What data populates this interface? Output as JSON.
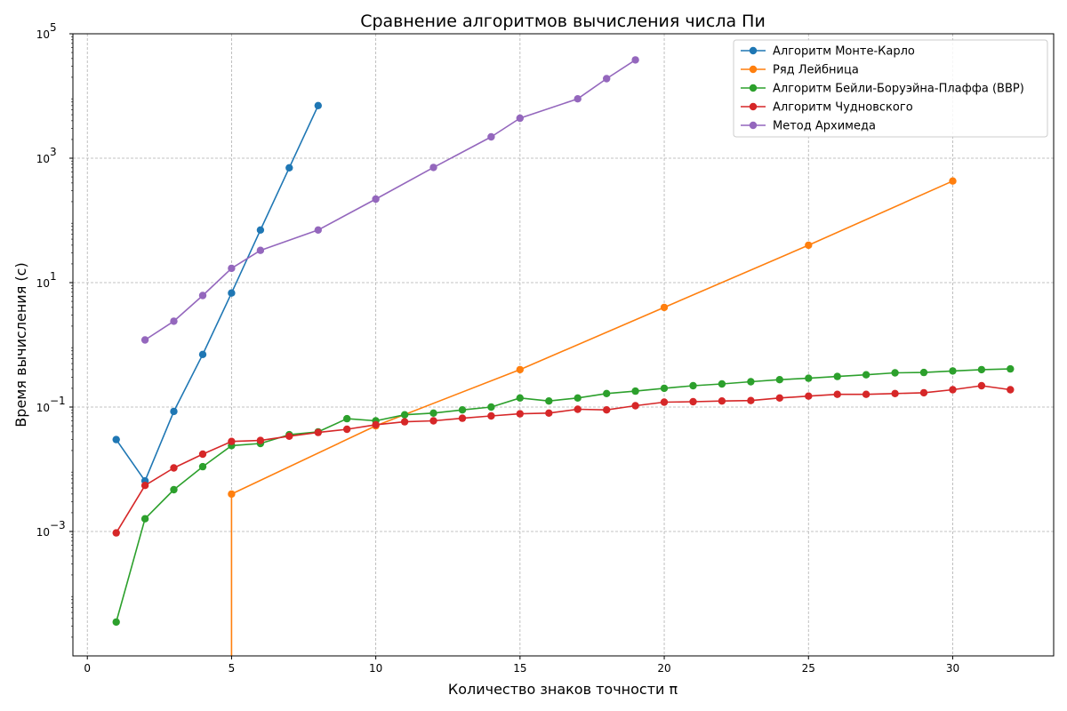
{
  "chart_data": {
    "type": "line",
    "title": "Сравнение алгоритмов вычисления числа Пи",
    "xlabel": "Количество знаков точности π",
    "ylabel": "Время вычисления (с)",
    "xlim": [
      -0.5,
      33.5
    ],
    "ylim": [
      1e-05,
      100000
    ],
    "yscale": "log",
    "x_ticks": [
      "0",
      "5",
      "10",
      "15",
      "20",
      "25",
      "30"
    ],
    "y_ticks": [
      {
        "base": "10",
        "exp": "5"
      },
      {
        "base": "10",
        "exp": "3"
      },
      {
        "base": "10",
        "exp": "1"
      },
      {
        "base": "10",
        "exp": "−1"
      },
      {
        "base": "10",
        "exp": "−3"
      }
    ],
    "grid": true,
    "legend_position": "top-right",
    "series": [
      {
        "name": "Алгоритм Монте-Карло",
        "color": "#1f77b4",
        "points": [
          [
            1,
            0.03
          ],
          [
            2,
            0.0065
          ],
          [
            3,
            0.085
          ],
          [
            4,
            0.7
          ],
          [
            5,
            6.8
          ],
          [
            6,
            70
          ],
          [
            7,
            700
          ],
          [
            8,
            7000
          ]
        ]
      },
      {
        "name": "Ряд Лейбница",
        "color": "#ff7f0e",
        "drop_to_bottom_at": 5,
        "points": [
          [
            5,
            0.004
          ],
          [
            10,
            0.05
          ],
          [
            15,
            0.4
          ],
          [
            20,
            4
          ],
          [
            25,
            40
          ],
          [
            30,
            430
          ]
        ]
      },
      {
        "name": "Алгоритм Бейли-Боруэйна-Плаффа (BBP)",
        "color": "#2ca02c",
        "points": [
          [
            1,
            3.5e-05
          ],
          [
            2,
            0.0016
          ],
          [
            3,
            0.0047
          ],
          [
            4,
            0.011
          ],
          [
            5,
            0.024
          ],
          [
            6,
            0.026
          ],
          [
            7,
            0.036
          ],
          [
            8,
            0.04
          ],
          [
            9,
            0.065
          ],
          [
            10,
            0.06
          ],
          [
            11,
            0.075
          ],
          [
            12,
            0.08
          ],
          [
            13,
            0.09
          ],
          [
            14,
            0.1
          ],
          [
            15,
            0.14
          ],
          [
            16,
            0.125
          ],
          [
            17,
            0.14
          ],
          [
            18,
            0.165
          ],
          [
            19,
            0.18
          ],
          [
            20,
            0.2
          ],
          [
            21,
            0.22
          ],
          [
            22,
            0.235
          ],
          [
            23,
            0.255
          ],
          [
            24,
            0.275
          ],
          [
            25,
            0.29
          ],
          [
            26,
            0.31
          ],
          [
            27,
            0.33
          ],
          [
            28,
            0.355
          ],
          [
            29,
            0.36
          ],
          [
            30,
            0.38
          ],
          [
            31,
            0.4
          ],
          [
            32,
            0.41
          ]
        ]
      },
      {
        "name": "Алгоритм Чудновского",
        "color": "#d62728",
        "points": [
          [
            1,
            0.00095
          ],
          [
            2,
            0.0055
          ],
          [
            3,
            0.0105
          ],
          [
            4,
            0.0175
          ],
          [
            5,
            0.028
          ],
          [
            6,
            0.029
          ],
          [
            7,
            0.034
          ],
          [
            8,
            0.039
          ],
          [
            9,
            0.044
          ],
          [
            10,
            0.052
          ],
          [
            11,
            0.058
          ],
          [
            12,
            0.06
          ],
          [
            13,
            0.066
          ],
          [
            14,
            0.072
          ],
          [
            15,
            0.078
          ],
          [
            16,
            0.08
          ],
          [
            17,
            0.092
          ],
          [
            18,
            0.09
          ],
          [
            19,
            0.105
          ],
          [
            20,
            0.12
          ],
          [
            21,
            0.122
          ],
          [
            22,
            0.125
          ],
          [
            23,
            0.127
          ],
          [
            24,
            0.14
          ],
          [
            25,
            0.15
          ],
          [
            26,
            0.16
          ],
          [
            27,
            0.16
          ],
          [
            28,
            0.165
          ],
          [
            29,
            0.17
          ],
          [
            30,
            0.19
          ],
          [
            31,
            0.22
          ],
          [
            32,
            0.19
          ]
        ]
      },
      {
        "name": "Метод Архимеда",
        "color": "#9467bd",
        "points": [
          [
            2,
            1.2
          ],
          [
            3,
            2.4
          ],
          [
            4,
            6.2
          ],
          [
            5,
            17
          ],
          [
            6,
            33
          ],
          [
            8,
            70
          ],
          [
            10,
            220
          ],
          [
            12,
            710
          ],
          [
            14,
            2200
          ],
          [
            15,
            4400
          ],
          [
            17,
            9000
          ],
          [
            18,
            19000
          ],
          [
            19,
            38000
          ]
        ]
      }
    ]
  }
}
